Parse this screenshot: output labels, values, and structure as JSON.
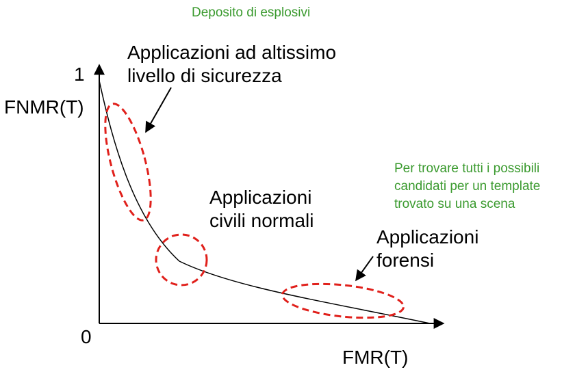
{
  "notes": {
    "top": "Deposito di esplosivi",
    "right": "Per trovare tutti i possibili\ncandidati per un template\ntrovato su una scena"
  },
  "axes": {
    "y_label": "FNMR(T)",
    "x_label": "FMR(T)",
    "y_max": "1",
    "origin": "0"
  },
  "regions": {
    "high_security": "Applicazioni ad altissimo\nlivello di sicurezza",
    "civil": "Applicazioni\ncivili normali",
    "forensic": "Applicazioni\nforensi"
  },
  "colors": {
    "curve": "#000000",
    "regions": "#e0201b",
    "notes": "#3a9a2e"
  }
}
